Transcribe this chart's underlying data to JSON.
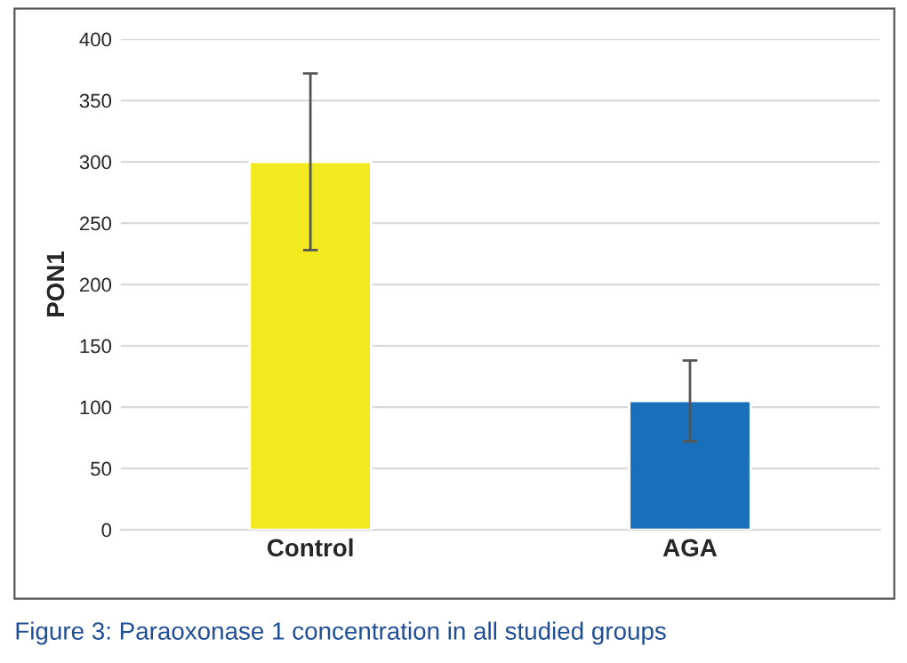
{
  "chart_data": {
    "type": "bar",
    "ylabel": "PON1",
    "categories": [
      "Control",
      "AGA"
    ],
    "values": [
      300,
      105
    ],
    "colors": [
      "#f2ea1c",
      "#1a6fba"
    ],
    "errors": [
      72,
      33
    ],
    "ylim": [
      0,
      400
    ],
    "yticks": [
      0,
      50,
      100,
      150,
      200,
      250,
      300,
      350,
      400
    ],
    "grid": "y",
    "annotations": [
      "Figure 3: Paraoxonase 1 concentration in all studied groups"
    ]
  }
}
